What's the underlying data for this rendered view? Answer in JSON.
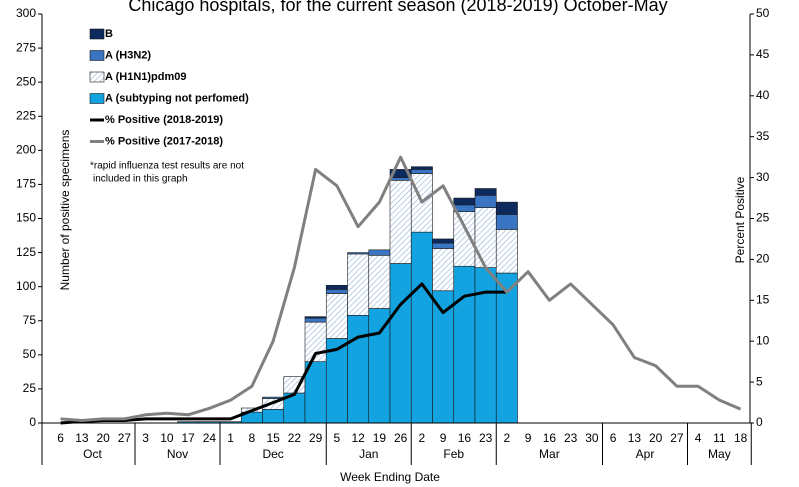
{
  "chart_data": {
    "type": "bar",
    "title": "Chicago hospitals, for the current season (2018-2019) October-May",
    "x_label": "Week Ending Date",
    "y_label": "Number of positive specimens",
    "y2_label": "Percent Positive",
    "annotation": [
      "*rapid influenza test results are not",
      "included in this graph"
    ],
    "groups": [
      {
        "label": "Oct",
        "categories": [
          "6",
          "13",
          "20",
          "27"
        ]
      },
      {
        "label": "Nov",
        "categories": [
          "3",
          "10",
          "17",
          "24"
        ]
      },
      {
        "label": "Dec",
        "categories": [
          "1",
          "8",
          "15",
          "22",
          "29"
        ]
      },
      {
        "label": "Jan",
        "categories": [
          "5",
          "12",
          "19",
          "26"
        ]
      },
      {
        "label": "Feb",
        "categories": [
          "2",
          "9",
          "16",
          "23"
        ]
      },
      {
        "label": "Mar",
        "categories": [
          "2",
          "9",
          "16",
          "23",
          "30"
        ]
      },
      {
        "label": "Apr",
        "categories": [
          "6",
          "13",
          "20",
          "27"
        ]
      },
      {
        "label": "May",
        "categories": [
          "4",
          "11",
          "18"
        ]
      }
    ],
    "ylim": [
      0,
      300
    ],
    "yticks": [
      0,
      25,
      50,
      75,
      100,
      125,
      150,
      175,
      200,
      225,
      250,
      275,
      300
    ],
    "y2lim": [
      0,
      50
    ],
    "y2ticks": [
      0,
      5,
      10,
      15,
      20,
      25,
      30,
      35,
      40,
      45,
      50
    ],
    "series": [
      {
        "name": "A (subtyping not perfomed)",
        "kind": "bar",
        "color": "#12a3e0",
        "values": [
          0,
          0,
          0,
          0,
          0,
          0,
          1,
          1,
          1,
          8,
          10,
          22,
          45,
          62,
          79,
          84,
          117,
          140,
          97,
          115,
          114,
          110,
          null,
          null,
          null,
          null,
          null,
          null,
          null,
          null,
          null,
          null,
          null
        ]
      },
      {
        "name": "A (H1N1)pdm09",
        "kind": "bar",
        "color": "hatch",
        "values": [
          0,
          0,
          0,
          0,
          0,
          0,
          0,
          0,
          0,
          3,
          8,
          12,
          29,
          33,
          45,
          39,
          61,
          43,
          31,
          40,
          44,
          32,
          null,
          null,
          null,
          null,
          null,
          null,
          null,
          null,
          null,
          null,
          null
        ]
      },
      {
        "name": "A (H3N2)",
        "kind": "bar",
        "color": "#3a75c4",
        "values": [
          0,
          0,
          0,
          0,
          0,
          0,
          0,
          0,
          0,
          0,
          1,
          0,
          3,
          3,
          1,
          4,
          2,
          3,
          4,
          5,
          9,
          11,
          null,
          null,
          null,
          null,
          null,
          null,
          null,
          null,
          null,
          null,
          null
        ]
      },
      {
        "name": "B",
        "kind": "bar",
        "color": "#0d2a5e",
        "values": [
          0,
          0,
          0,
          0,
          0,
          0,
          0,
          0,
          0,
          0,
          0,
          0,
          1,
          3,
          0,
          0,
          6,
          2,
          3,
          5,
          5,
          9,
          null,
          null,
          null,
          null,
          null,
          null,
          null,
          null,
          null,
          null,
          null
        ]
      },
      {
        "name": "% Positive (2018-2019)",
        "kind": "line",
        "axis": "y2",
        "color": "#000000",
        "values": [
          0,
          0.2,
          0.3,
          0.3,
          0.5,
          0.5,
          0.5,
          0.5,
          0.5,
          1.5,
          2.5,
          3.5,
          8.5,
          9,
          10.5,
          11,
          14.5,
          17,
          13.5,
          15.5,
          16,
          16,
          null,
          null,
          null,
          null,
          null,
          null,
          null,
          null,
          null,
          null,
          null
        ]
      },
      {
        "name": "% Positive (2017-2018)",
        "kind": "line",
        "axis": "y2",
        "color": "#808080",
        "values": [
          0.5,
          0.3,
          0.5,
          0.5,
          1,
          1.2,
          1,
          1.8,
          2.8,
          4.5,
          10,
          19,
          31,
          29,
          24,
          27,
          32.5,
          27,
          29,
          24,
          19,
          16,
          18.5,
          15,
          17,
          14.5,
          12,
          8,
          7,
          4.5,
          4.5,
          2.8,
          1.7
        ]
      }
    ]
  }
}
